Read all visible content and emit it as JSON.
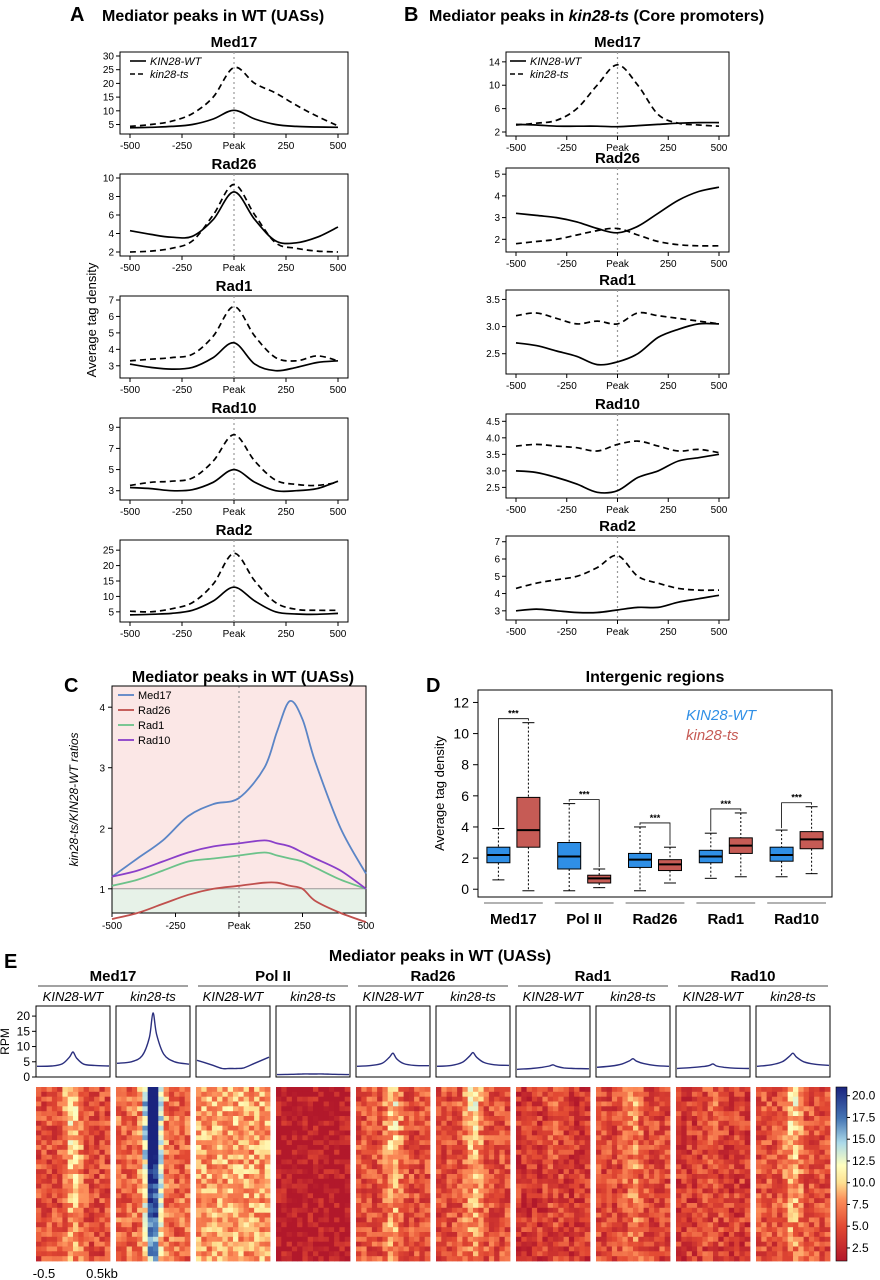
{
  "panels": {
    "A": {
      "letter": "A",
      "title": "Mediator peaks in WT (UASs)"
    },
    "B": {
      "letter": "B",
      "title_prefix": "Mediator peaks in ",
      "title_italic": "kin28-ts",
      "title_suffix": " (Core promoters)"
    },
    "C": {
      "letter": "C",
      "title": "Mediator peaks in WT (UASs)"
    },
    "D": {
      "letter": "D",
      "title": "Intergenic regions"
    },
    "E": {
      "letter": "E",
      "title": "Mediator peaks in WT (UASs)"
    }
  },
  "legend_ab": {
    "wt": "KIN28-WT",
    "ts": "kin28-ts"
  },
  "ylabel_a": "Average tag density",
  "x_ticks_ab": [
    "-500",
    "-250",
    "Peak",
    "250",
    "500"
  ],
  "colors": {
    "c_med17": "#5b85c6",
    "c_rad26": "#c0504d",
    "c_rad1": "#6cc28a",
    "c_rad10": "#8a3fc9",
    "d_wt": "#2f8fe6",
    "d_ts": "#c65b55",
    "e_line": "#2b2f7e"
  },
  "chart_data": [
    {
      "panel": "A",
      "type": "line",
      "title": "Mediator peaks in WT (UASs)",
      "xlabel": "",
      "ylabel": "Average tag density",
      "x": [
        -500,
        -400,
        -300,
        -200,
        -100,
        0,
        100,
        200,
        300,
        400,
        500
      ],
      "x_tick_labels": [
        "-500",
        "-250",
        "Peak",
        "250",
        "500"
      ],
      "subplots": [
        {
          "name": "Med17",
          "ylim": [
            3,
            30
          ],
          "yticks": [
            5,
            10,
            15,
            20,
            25,
            30
          ],
          "series": [
            {
              "name": "KIN28-WT",
              "style": "solid",
              "values": [
                3.8,
                4.0,
                4.3,
                5.0,
                7.0,
                10.2,
                7.0,
                5.0,
                4.3,
                4.1,
                4.0
              ]
            },
            {
              "name": "kin28-ts",
              "style": "dashed",
              "values": [
                4.3,
                5.0,
                6.2,
                9.0,
                15.0,
                25.8,
                20.0,
                16.5,
                12.0,
                8.0,
                4.5
              ]
            }
          ]
        },
        {
          "name": "Rad26",
          "ylim": [
            2,
            10
          ],
          "yticks": [
            2,
            4,
            6,
            8,
            10
          ],
          "series": [
            {
              "name": "KIN28-WT",
              "style": "solid",
              "values": [
                4.3,
                3.9,
                3.6,
                3.7,
                5.5,
                8.5,
                5.5,
                3.2,
                3.0,
                3.6,
                4.7
              ]
            },
            {
              "name": "kin28-ts",
              "style": "dashed",
              "values": [
                2.0,
                2.1,
                2.4,
                3.2,
                6.0,
                9.3,
                6.0,
                3.0,
                2.4,
                2.1,
                2.0
              ]
            }
          ]
        },
        {
          "name": "Rad1",
          "ylim": [
            2.5,
            7
          ],
          "yticks": [
            3,
            4,
            5,
            6,
            7
          ],
          "series": [
            {
              "name": "KIN28-WT",
              "style": "solid",
              "values": [
                3.1,
                2.9,
                2.8,
                2.9,
                3.5,
                4.4,
                3.1,
                2.7,
                2.9,
                3.2,
                3.3
              ]
            },
            {
              "name": "kin28-ts",
              "style": "dashed",
              "values": [
                3.3,
                3.4,
                3.5,
                3.7,
                4.8,
                6.6,
                4.8,
                3.5,
                3.3,
                3.6,
                3.3
              ]
            }
          ]
        },
        {
          "name": "Rad10",
          "ylim": [
            2.5,
            9.5
          ],
          "yticks": [
            3,
            5,
            7,
            9
          ],
          "series": [
            {
              "name": "KIN28-WT",
              "style": "solid",
              "values": [
                3.3,
                3.2,
                3.0,
                3.1,
                3.8,
                5.0,
                3.8,
                3.0,
                3.0,
                3.2,
                3.9
              ]
            },
            {
              "name": "kin28-ts",
              "style": "dashed",
              "values": [
                3.5,
                3.8,
                3.9,
                4.2,
                5.8,
                8.3,
                5.8,
                4.0,
                3.6,
                3.5,
                3.8
              ]
            }
          ]
        },
        {
          "name": "Rad2",
          "ylim": [
            3,
            27
          ],
          "yticks": [
            5,
            10,
            15,
            20,
            25
          ],
          "series": [
            {
              "name": "KIN28-WT",
              "style": "solid",
              "values": [
                4.0,
                4.2,
                4.5,
                5.5,
                8.5,
                13.0,
                8.5,
                5.0,
                4.3,
                4.2,
                4.5
              ]
            },
            {
              "name": "kin28-ts",
              "style": "dashed",
              "values": [
                5.2,
                5.0,
                6.0,
                8.0,
                14.0,
                24.0,
                15.0,
                8.0,
                5.8,
                5.5,
                5.5
              ]
            }
          ]
        }
      ]
    },
    {
      "panel": "B",
      "type": "line",
      "title": "Mediator peaks in kin28-ts (Core promoters)",
      "xlabel": "",
      "ylabel": "",
      "x": [
        -500,
        -400,
        -300,
        -200,
        -100,
        0,
        100,
        200,
        300,
        400,
        500
      ],
      "x_tick_labels": [
        "-500",
        "-250",
        "Peak",
        "250",
        "500"
      ],
      "subplots": [
        {
          "name": "Med17",
          "ylim": [
            2,
            15
          ],
          "yticks": [
            2,
            6,
            10,
            14
          ],
          "series": [
            {
              "name": "KIN28-WT",
              "style": "solid",
              "values": [
                3.3,
                3.2,
                3.0,
                3.0,
                3.0,
                2.9,
                3.1,
                3.3,
                3.5,
                3.6,
                3.6
              ]
            },
            {
              "name": "kin28-ts",
              "style": "dashed",
              "values": [
                3.2,
                3.5,
                4.0,
                6.0,
                10.0,
                13.5,
                10.0,
                5.0,
                3.5,
                3.2,
                3.0
              ]
            }
          ]
        },
        {
          "name": "Rad26",
          "ylim": [
            1.6,
            5.1
          ],
          "yticks": [
            2,
            3,
            4,
            5
          ],
          "series": [
            {
              "name": "KIN28-WT",
              "style": "solid",
              "values": [
                3.2,
                3.1,
                3.0,
                2.8,
                2.5,
                2.3,
                2.6,
                3.2,
                3.8,
                4.2,
                4.4
              ]
            },
            {
              "name": "kin28-ts",
              "style": "dashed",
              "values": [
                1.8,
                1.9,
                2.0,
                2.2,
                2.4,
                2.5,
                2.2,
                1.9,
                1.75,
                1.7,
                1.7
              ]
            }
          ]
        },
        {
          "name": "Rad1",
          "ylim": [
            2.2,
            3.6
          ],
          "yticks": [
            2.5,
            3.0,
            3.5
          ],
          "series": [
            {
              "name": "KIN28-WT",
              "style": "solid",
              "values": [
                2.7,
                2.65,
                2.55,
                2.45,
                2.3,
                2.35,
                2.5,
                2.8,
                2.95,
                3.05,
                3.05
              ]
            },
            {
              "name": "kin28-ts",
              "style": "dashed",
              "values": [
                3.2,
                3.25,
                3.15,
                3.05,
                3.1,
                3.05,
                3.25,
                3.2,
                3.15,
                3.1,
                3.05
              ]
            }
          ]
        },
        {
          "name": "Rad10",
          "ylim": [
            2.3,
            4.6
          ],
          "yticks": [
            2.5,
            3.0,
            3.5,
            4.0,
            4.5
          ],
          "series": [
            {
              "name": "KIN28-WT",
              "style": "solid",
              "values": [
                3.0,
                2.95,
                2.8,
                2.6,
                2.35,
                2.4,
                2.8,
                3.0,
                3.3,
                3.4,
                3.5
              ]
            },
            {
              "name": "kin28-ts",
              "style": "dashed",
              "values": [
                3.75,
                3.8,
                3.75,
                3.7,
                3.6,
                3.8,
                3.9,
                3.75,
                3.6,
                3.65,
                3.55
              ]
            }
          ]
        },
        {
          "name": "Rad2",
          "ylim": [
            2.7,
            7.1
          ],
          "yticks": [
            3,
            4,
            5,
            6,
            7
          ],
          "series": [
            {
              "name": "KIN28-WT",
              "style": "solid",
              "values": [
                3.0,
                3.1,
                3.0,
                2.9,
                2.9,
                3.05,
                3.2,
                3.2,
                3.5,
                3.7,
                3.9
              ]
            },
            {
              "name": "kin28-ts",
              "style": "dashed",
              "values": [
                4.3,
                4.6,
                4.8,
                5.0,
                5.5,
                6.2,
                5.0,
                4.6,
                4.3,
                4.2,
                4.2
              ]
            }
          ]
        }
      ]
    },
    {
      "panel": "C",
      "type": "line",
      "title": "Mediator peaks in WT (UASs)",
      "xlabel": "",
      "ylabel": "kin28-ts/KIN28-WT ratios",
      "ylim": [
        0.6,
        4.35
      ],
      "yticks": [
        1,
        2,
        3,
        4
      ],
      "xlim": [
        -500,
        500
      ],
      "x_tick_labels": [
        "-500",
        "-250",
        "Peak",
        "250",
        "500"
      ],
      "x": [
        -500,
        -400,
        -300,
        -200,
        -100,
        0,
        100,
        150,
        200,
        250,
        300,
        400,
        500
      ],
      "series": [
        {
          "name": "Med17",
          "color": "#5b85c6",
          "values": [
            1.2,
            1.5,
            1.8,
            2.2,
            2.4,
            2.5,
            3.0,
            3.6,
            4.1,
            3.8,
            3.1,
            2.0,
            1.25
          ]
        },
        {
          "name": "Rad26",
          "color": "#c0504d",
          "values": [
            0.5,
            0.6,
            0.75,
            0.9,
            1.0,
            1.05,
            1.1,
            1.1,
            1.05,
            1.0,
            0.8,
            0.6,
            0.45
          ]
        },
        {
          "name": "Rad1",
          "color": "#6cc28a",
          "values": [
            1.05,
            1.15,
            1.3,
            1.45,
            1.5,
            1.55,
            1.6,
            1.55,
            1.5,
            1.45,
            1.35,
            1.15,
            1.0
          ]
        },
        {
          "name": "Rad10",
          "color": "#8a3fc9",
          "values": [
            1.2,
            1.3,
            1.45,
            1.6,
            1.7,
            1.75,
            1.8,
            1.75,
            1.7,
            1.6,
            1.5,
            1.3,
            1.0
          ]
        }
      ],
      "reference_line": 1
    },
    {
      "panel": "D",
      "type": "box",
      "title": "Intergenic regions",
      "xlabel": "",
      "ylabel": "Average tag density",
      "ylim": [
        -0.5,
        12.8
      ],
      "yticks": [
        0,
        2,
        4,
        6,
        8,
        10,
        12
      ],
      "categories": [
        "Med17",
        "Pol II",
        "Rad26",
        "Rad1",
        "Rad10"
      ],
      "legend": [
        "KIN28-WT",
        "kin28-ts"
      ],
      "significance": "***",
      "boxes": [
        {
          "group": "Med17",
          "series": "KIN28-WT",
          "min": 0.6,
          "q1": 1.7,
          "median": 2.2,
          "q3": 2.7,
          "max": 3.9
        },
        {
          "group": "Med17",
          "series": "kin28-ts",
          "min": -0.1,
          "q1": 2.7,
          "median": 3.8,
          "q3": 5.9,
          "max": 10.7
        },
        {
          "group": "Pol II",
          "series": "KIN28-WT",
          "min": -0.1,
          "q1": 1.3,
          "median": 2.1,
          "q3": 3.0,
          "max": 5.5
        },
        {
          "group": "Pol II",
          "series": "kin28-ts",
          "min": 0.1,
          "q1": 0.4,
          "median": 0.7,
          "q3": 0.9,
          "max": 1.3
        },
        {
          "group": "Rad26",
          "series": "KIN28-WT",
          "min": -0.1,
          "q1": 1.4,
          "median": 1.9,
          "q3": 2.3,
          "max": 4.0
        },
        {
          "group": "Rad26",
          "series": "kin28-ts",
          "min": 0.4,
          "q1": 1.2,
          "median": 1.6,
          "q3": 1.9,
          "max": 2.7
        },
        {
          "group": "Rad1",
          "series": "KIN28-WT",
          "min": 0.7,
          "q1": 1.7,
          "median": 2.1,
          "q3": 2.5,
          "max": 3.6
        },
        {
          "group": "Rad1",
          "series": "kin28-ts",
          "min": 0.8,
          "q1": 2.3,
          "median": 2.8,
          "q3": 3.3,
          "max": 4.9
        },
        {
          "group": "Rad10",
          "series": "KIN28-WT",
          "min": 0.8,
          "q1": 1.8,
          "median": 2.2,
          "q3": 2.7,
          "max": 3.8
        },
        {
          "group": "Rad10",
          "series": "kin28-ts",
          "min": 1.0,
          "q1": 2.6,
          "median": 3.2,
          "q3": 3.7,
          "max": 5.3
        }
      ]
    },
    {
      "panel": "E",
      "type": "line",
      "title": "Mediator peaks in WT (UASs)",
      "xlabel": "",
      "ylabel": "RPM",
      "ylim": [
        0,
        22
      ],
      "yticks": [
        0,
        5,
        10,
        15,
        20
      ],
      "x_tick_labels": [
        "-0.5",
        "0.5kb"
      ],
      "x": [
        -500,
        -300,
        -150,
        -50,
        0,
        50,
        150,
        300,
        500
      ],
      "series": [
        {
          "group": "Med17",
          "name": "KIN28-WT",
          "values": [
            3.5,
            3.6,
            4.3,
            6.5,
            8.2,
            6.2,
            4.2,
            3.8,
            3.6
          ]
        },
        {
          "group": "Med17",
          "name": "kin28-ts",
          "values": [
            4.5,
            5.0,
            7.0,
            13.0,
            21.0,
            14.0,
            7.5,
            5.0,
            4.2
          ]
        },
        {
          "group": "Pol II",
          "name": "KIN28-WT",
          "values": [
            5.5,
            4.0,
            2.8,
            2.8,
            2.8,
            2.8,
            3.0,
            4.5,
            6.5
          ]
        },
        {
          "group": "Pol II",
          "name": "kin28-ts",
          "values": [
            0.8,
            0.9,
            1.0,
            1.0,
            1.0,
            1.0,
            1.0,
            0.9,
            0.8
          ]
        },
        {
          "group": "Rad26",
          "name": "KIN28-WT",
          "values": [
            3.5,
            3.8,
            4.5,
            6.5,
            7.8,
            6.0,
            4.4,
            3.8,
            3.7
          ]
        },
        {
          "group": "Rad26",
          "name": "kin28-ts",
          "values": [
            3.5,
            3.8,
            4.8,
            6.8,
            8.0,
            6.5,
            4.8,
            4.0,
            3.8
          ]
        },
        {
          "group": "Rad1",
          "name": "KIN28-WT",
          "values": [
            2.5,
            2.8,
            3.2,
            3.6,
            4.0,
            3.5,
            3.0,
            2.8,
            2.7
          ]
        },
        {
          "group": "Rad1",
          "name": "kin28-ts",
          "values": [
            3.2,
            3.6,
            4.3,
            5.3,
            6.0,
            5.2,
            4.4,
            3.8,
            3.5
          ]
        },
        {
          "group": "Rad10",
          "name": "KIN28-WT",
          "values": [
            2.8,
            3.1,
            3.4,
            3.8,
            4.3,
            3.6,
            3.2,
            2.9,
            2.8
          ]
        },
        {
          "group": "Rad10",
          "name": "kin28-ts",
          "values": [
            3.5,
            4.0,
            5.0,
            6.8,
            7.8,
            6.5,
            5.0,
            4.2,
            3.8
          ]
        }
      ],
      "heatmap": {
        "colorbar_ticks": [
          "20.0",
          "17.5",
          "15.0",
          "12.5",
          "10.0",
          "7.5",
          "5.0",
          "2.5"
        ],
        "range": [
          1,
          21
        ]
      }
    }
  ]
}
